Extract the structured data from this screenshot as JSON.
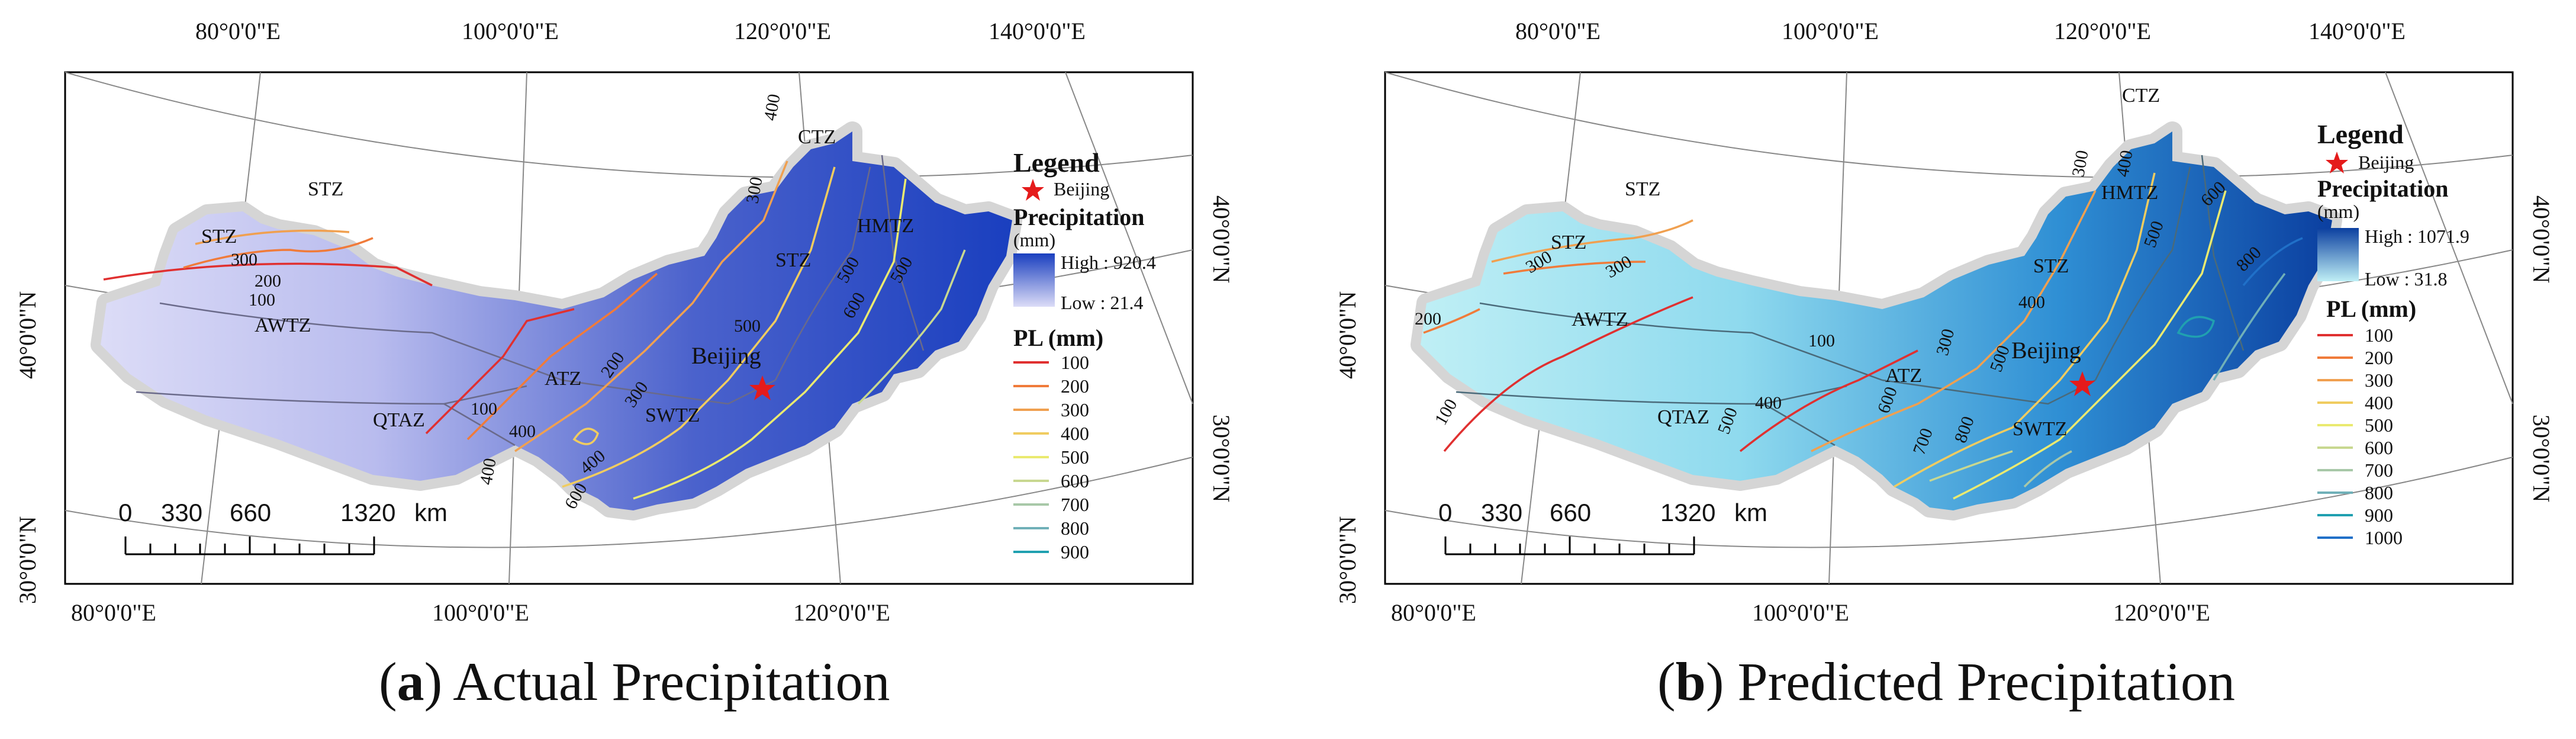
{
  "panels": [
    {
      "id": "a",
      "caption_letter": "a",
      "caption_text": "Actual Precipitation",
      "top_lon_labels": [
        "80°0'0\"E",
        "100°0'0\"E",
        "120°0'0\"E",
        "140°0'0\"E"
      ],
      "bottom_lon_labels": [
        "80°0'0\"E",
        "100°0'0\"E",
        "120°0'0\"E"
      ],
      "left_lat_labels": [
        "40°0'0\"N",
        "30°0'0\"N"
      ],
      "right_lat_labels": [
        "40°0'0\"N",
        "30°0'0\"N"
      ],
      "legend": {
        "title": "Legend",
        "beijing_label": "Beijing",
        "precip_title": "Precipitation",
        "precip_unit": "(mm)",
        "high_label": "High : 920.4",
        "low_label": "Low : 21.4",
        "ramp_colors": [
          "#1a3fbf",
          "#dcdcf7"
        ],
        "pl_title": "PL (mm)",
        "pl_levels": [
          "100",
          "200",
          "300",
          "400",
          "500",
          "600",
          "700",
          "800",
          "900"
        ],
        "pl_colors": [
          "#e03030",
          "#f07b3a",
          "#f0a050",
          "#f0cc60",
          "#eaea70",
          "#c8d890",
          "#a8c8a8",
          "#70b0b8",
          "#20a0b0"
        ]
      },
      "zones": [
        "STZ",
        "STZ",
        "STZ",
        "AWTZ",
        "QTAZ",
        "ATZ",
        "SWTZ",
        "CTZ",
        "HMTZ"
      ],
      "city_label": "Beijing",
      "contour_labels": [
        "300",
        "200",
        "100",
        "100",
        "200",
        "300",
        "400",
        "400",
        "400",
        "500",
        "600",
        "400",
        "300",
        "500",
        "600",
        "500"
      ],
      "scale_numbers": [
        "0",
        "330",
        "660",
        "1320",
        "km"
      ]
    },
    {
      "id": "b",
      "caption_letter": "b",
      "caption_text": "Predicted Precipitation",
      "top_lon_labels": [
        "80°0'0\"E",
        "100°0'0\"E",
        "120°0'0\"E",
        "140°0'0\"E"
      ],
      "bottom_lon_labels": [
        "80°0'0\"E",
        "100°0'0\"E",
        "120°0'0\"E"
      ],
      "left_lat_labels": [
        "40°0'0\"N",
        "30°0'0\"N"
      ],
      "right_lat_labels": [
        "40°0'0\"N",
        "30°0'0\"N"
      ],
      "legend": {
        "title": "Legend",
        "beijing_label": "Beijing",
        "precip_title": "Precipitation",
        "precip_unit": "(mm)",
        "high_label": "High : 1071.9",
        "low_label": "Low : 31.8",
        "ramp_colors": [
          "#0b3fa0",
          "#bfeff5"
        ],
        "pl_title": "PL (mm)",
        "pl_levels": [
          "100",
          "200",
          "300",
          "400",
          "500",
          "600",
          "700",
          "800",
          "900",
          "1000"
        ],
        "pl_colors": [
          "#e03030",
          "#f07b3a",
          "#f0a050",
          "#f0cc60",
          "#eaea70",
          "#c8d890",
          "#a8c8a8",
          "#70b0b8",
          "#20a0b0",
          "#2070c8"
        ]
      },
      "zones": [
        "STZ",
        "STZ",
        "STZ",
        "AWTZ",
        "QTAZ",
        "ATZ",
        "SWTZ",
        "CTZ",
        "HMTZ"
      ],
      "city_label": "Beijing",
      "contour_labels": [
        "300",
        "300",
        "200",
        "100",
        "100",
        "400",
        "500",
        "300",
        "400",
        "500",
        "600",
        "700",
        "800",
        "500",
        "400",
        "300",
        "600",
        "800"
      ],
      "scale_numbers": [
        "0",
        "330",
        "660",
        "1320",
        "km"
      ]
    }
  ]
}
